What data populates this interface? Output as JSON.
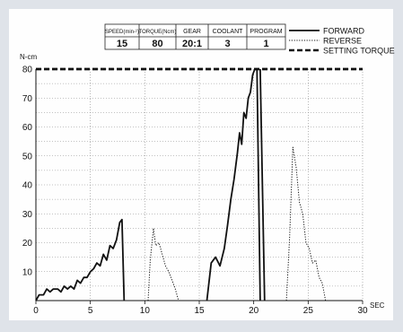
{
  "colors": {
    "background": "#dfe3e9",
    "panel": "#ffffff",
    "ink": "#111111",
    "grid": "#9a9a9a"
  },
  "settings_table": {
    "headers": [
      "SPEED(min-¹)",
      "TORQUE(Ncm)",
      "GEAR",
      "COOLANT",
      "PROGRAM"
    ],
    "values": [
      "15",
      "80",
      "20:1",
      "3",
      "1"
    ]
  },
  "chart_data": {
    "type": "line",
    "title": "",
    "xlabel": "SEC",
    "ylabel": "N-cm",
    "xlim": [
      0,
      30
    ],
    "ylim": [
      0,
      80
    ],
    "x_ticks": [
      0,
      5,
      10,
      15,
      20,
      25,
      30
    ],
    "y_ticks": [
      10,
      20,
      30,
      40,
      50,
      60,
      70,
      80
    ],
    "grid": true,
    "legend_position": "top-right",
    "series": [
      {
        "name": "FORWARD",
        "style": "solid",
        "x": [
          0,
          0.3,
          0.7,
          1.0,
          1.3,
          1.6,
          2.0,
          2.3,
          2.6,
          2.9,
          3.2,
          3.5,
          3.8,
          4.1,
          4.4,
          4.7,
          5.0,
          5.3,
          5.6,
          5.9,
          6.2,
          6.5,
          6.8,
          7.1,
          7.4,
          7.7,
          7.9,
          8.1
        ],
        "y": [
          0,
          2,
          2,
          4,
          3,
          4,
          4,
          3,
          5,
          4,
          5,
          4,
          7,
          6,
          8,
          8,
          10,
          11,
          13,
          12,
          16,
          14,
          19,
          18,
          21,
          27,
          28,
          0
        ],
        "x2": [
          15.7,
          16.1,
          16.5,
          16.9,
          17.3,
          17.6,
          17.9,
          18.2,
          18.5,
          18.7,
          18.9,
          19.1,
          19.3,
          19.5,
          19.7,
          19.9,
          20.1,
          20.3,
          20.6
        ],
        "y2": [
          0,
          13,
          15,
          12,
          18,
          26,
          35,
          42,
          51,
          58,
          54,
          65,
          63,
          70,
          72,
          78,
          80,
          80,
          0
        ],
        "x_extra": [
          20.6,
          21.0
        ],
        "y_extra": [
          80,
          0
        ]
      },
      {
        "name": "REVERSE",
        "style": "dotted",
        "x": [
          10.3,
          10.5,
          10.8,
          11.0,
          11.3,
          11.6,
          11.9,
          12.2,
          12.5,
          12.8,
          13.1
        ],
        "y": [
          0,
          14,
          25,
          19,
          20,
          16,
          12,
          10,
          7,
          4,
          0
        ],
        "x2": [
          23.0,
          23.3,
          23.6,
          23.9,
          24.2,
          24.5,
          24.8,
          25.1,
          25.4,
          25.7,
          26.0,
          26.3,
          26.6
        ],
        "y2": [
          0,
          22,
          53,
          46,
          34,
          30,
          20,
          18,
          13,
          14,
          8,
          6,
          0
        ]
      },
      {
        "name": "SETTING TORQUE",
        "style": "dashed",
        "x": [
          0,
          30
        ],
        "y": [
          80,
          80
        ]
      }
    ]
  }
}
